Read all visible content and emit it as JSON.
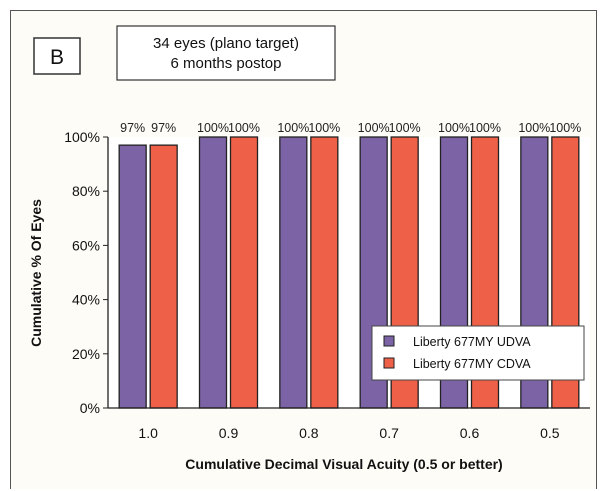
{
  "panel_label": "B",
  "info_box": {
    "line1": "34 eyes (plano target)",
    "line2": "6 months postop"
  },
  "chart_data": {
    "type": "bar",
    "title": "",
    "xlabel": "Cumulative Decimal Visual  Acuity (0.5 or better)",
    "ylabel": "Cumulative % Of Eyes",
    "categories": [
      "1.0",
      "0.9",
      "0.8",
      "0.7",
      "0.6",
      "0.5"
    ],
    "ylim": [
      0,
      100
    ],
    "yticks": [
      "0%",
      "20%",
      "40%",
      "60%",
      "80%",
      "100%"
    ],
    "series": [
      {
        "name": "Liberty 677MY UDVA",
        "color": "#7b63a6",
        "values": [
          97,
          100,
          100,
          100,
          100,
          100
        ],
        "labels": [
          "97%",
          "100%",
          "100%",
          "100%",
          "100%",
          "100%"
        ]
      },
      {
        "name": "Liberty 677MY CDVA",
        "color": "#ee6148",
        "values": [
          97,
          100,
          100,
          100,
          100,
          100
        ],
        "labels": [
          "97%",
          "100%",
          "100%",
          "100%",
          "100%",
          "100%"
        ]
      }
    ],
    "legend_position": "bottom-right",
    "grid": false
  }
}
